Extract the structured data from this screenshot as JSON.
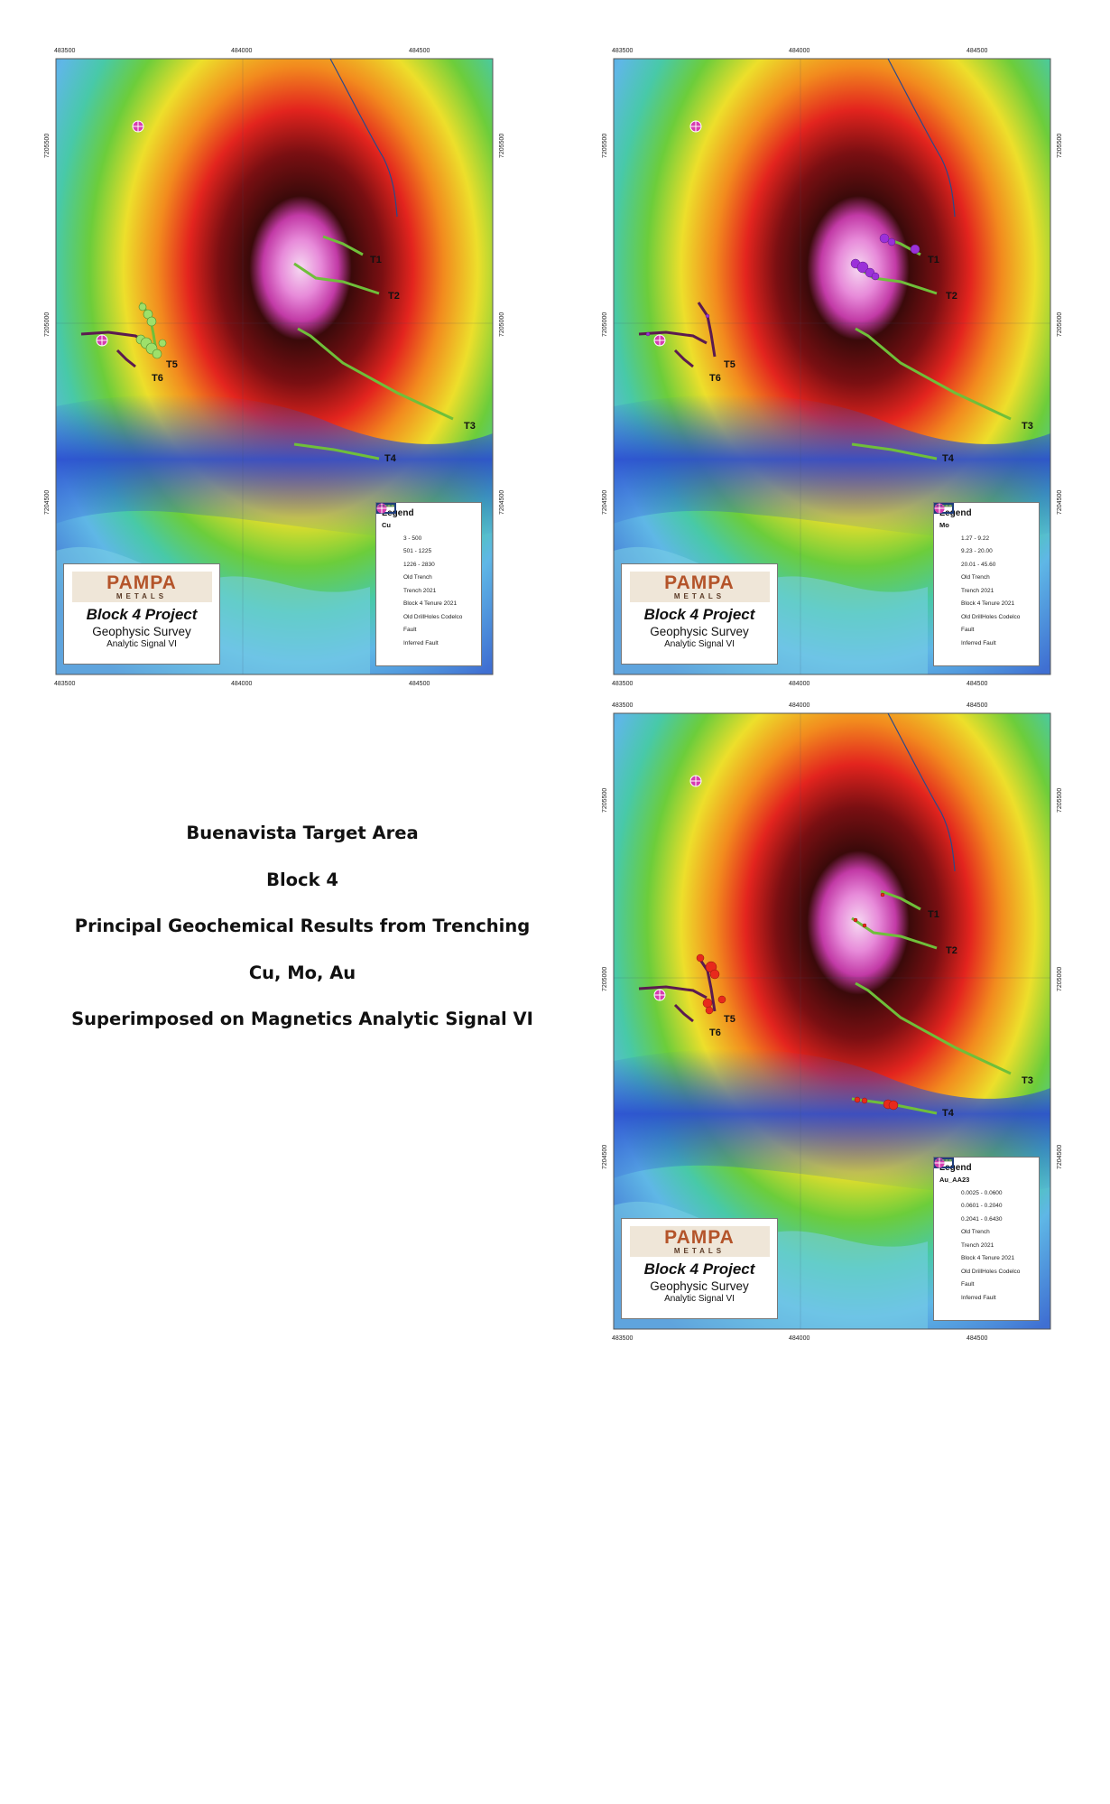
{
  "caption": {
    "line1": "Buenavista Target Area",
    "line2": "Block 4",
    "line3": "Principal Geochemical Results from Trenching",
    "line4": "Cu, Mo, Au",
    "line5": "Superimposed on Magnetics Analytic Signal VI"
  },
  "coordinates": {
    "x_ticks": [
      "483500",
      "484000",
      "484500"
    ],
    "y_ticks": [
      "7205500",
      "7205000",
      "7204500"
    ]
  },
  "trench_labels": [
    "T1",
    "T2",
    "T3",
    "T4",
    "T5",
    "T6"
  ],
  "logo": {
    "brand": "PAMPA",
    "sub": "METALS",
    "title": "Block 4 Project",
    "subtitle": "Geophysic Survey",
    "caption": "Analytic Signal VI"
  },
  "legend_common": {
    "title": "Legend",
    "old_trench": "Old Trench",
    "trench_2021": "Trench 2021",
    "tenure": "Block 4 Tenure 2021",
    "drillholes": "Old DrillHoles Codelco",
    "fault": "Fault",
    "inferred_fault": "Inferred Fault"
  },
  "panels": {
    "cu": {
      "field": "Cu",
      "color": "#7ed957",
      "classes": [
        "3 - 500",
        "501 - 1225",
        "1226 - 2830"
      ]
    },
    "mo": {
      "field": "Mo",
      "color": "#9b30d9",
      "classes": [
        "1.27 - 9.22",
        "9.23 - 20.00",
        "20.01 - 45.60"
      ]
    },
    "au": {
      "field": "Au_AA23",
      "color": "#e8291c",
      "classes": [
        "0.0025 - 0.0600",
        "0.0601 - 0.2040",
        "0.2041 - 0.6430"
      ]
    }
  },
  "colors": {
    "old_trench": "#5b1a4f",
    "trench_2021": "#6fbf3a",
    "tenure": "#1f3d7a",
    "drillhole": "#d63db0",
    "fault": "#2b4a8a"
  }
}
